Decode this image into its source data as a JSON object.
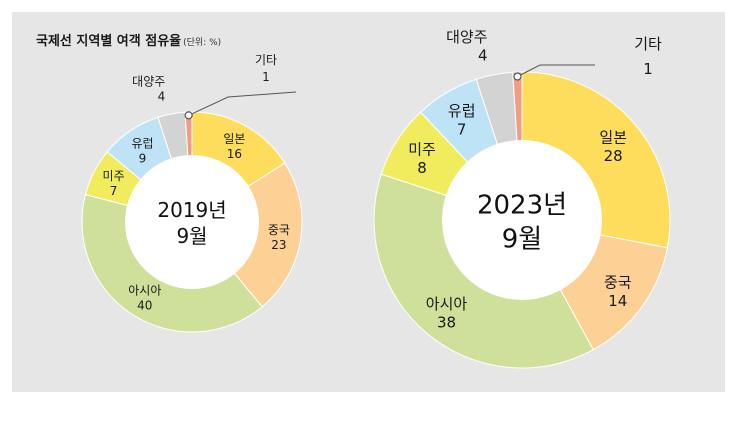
{
  "title": "국제선 지역별 여객 점유율",
  "unit_note": "(단위: %)",
  "colors": {
    "일본": "#fedd5c",
    "중국": "#fdd195",
    "아시아": "#cfe09a",
    "미주": "#f0ec5e",
    "유럽": "#bfe3f6",
    "대양주": "#d3d3d3",
    "기타": "#f29c83"
  },
  "chart_data": [
    {
      "type": "pie",
      "center_label": [
        "2019년",
        "9월"
      ],
      "slices": [
        {
          "label": "일본",
          "value": 16
        },
        {
          "label": "중국",
          "value": 23
        },
        {
          "label": "아시아",
          "value": 40
        },
        {
          "label": "미주",
          "value": 7
        },
        {
          "label": "유럽",
          "value": 9
        },
        {
          "label": "대양주",
          "value": 4
        },
        {
          "label": "기타",
          "value": 1
        }
      ]
    },
    {
      "type": "pie",
      "center_label": [
        "2023년",
        "9월"
      ],
      "slices": [
        {
          "label": "일본",
          "value": 28
        },
        {
          "label": "중국",
          "value": 14
        },
        {
          "label": "아시아",
          "value": 38
        },
        {
          "label": "미주",
          "value": 8
        },
        {
          "label": "유럽",
          "value": 7
        },
        {
          "label": "대양주",
          "value": 4
        },
        {
          "label": "기타",
          "value": 1
        }
      ]
    }
  ]
}
